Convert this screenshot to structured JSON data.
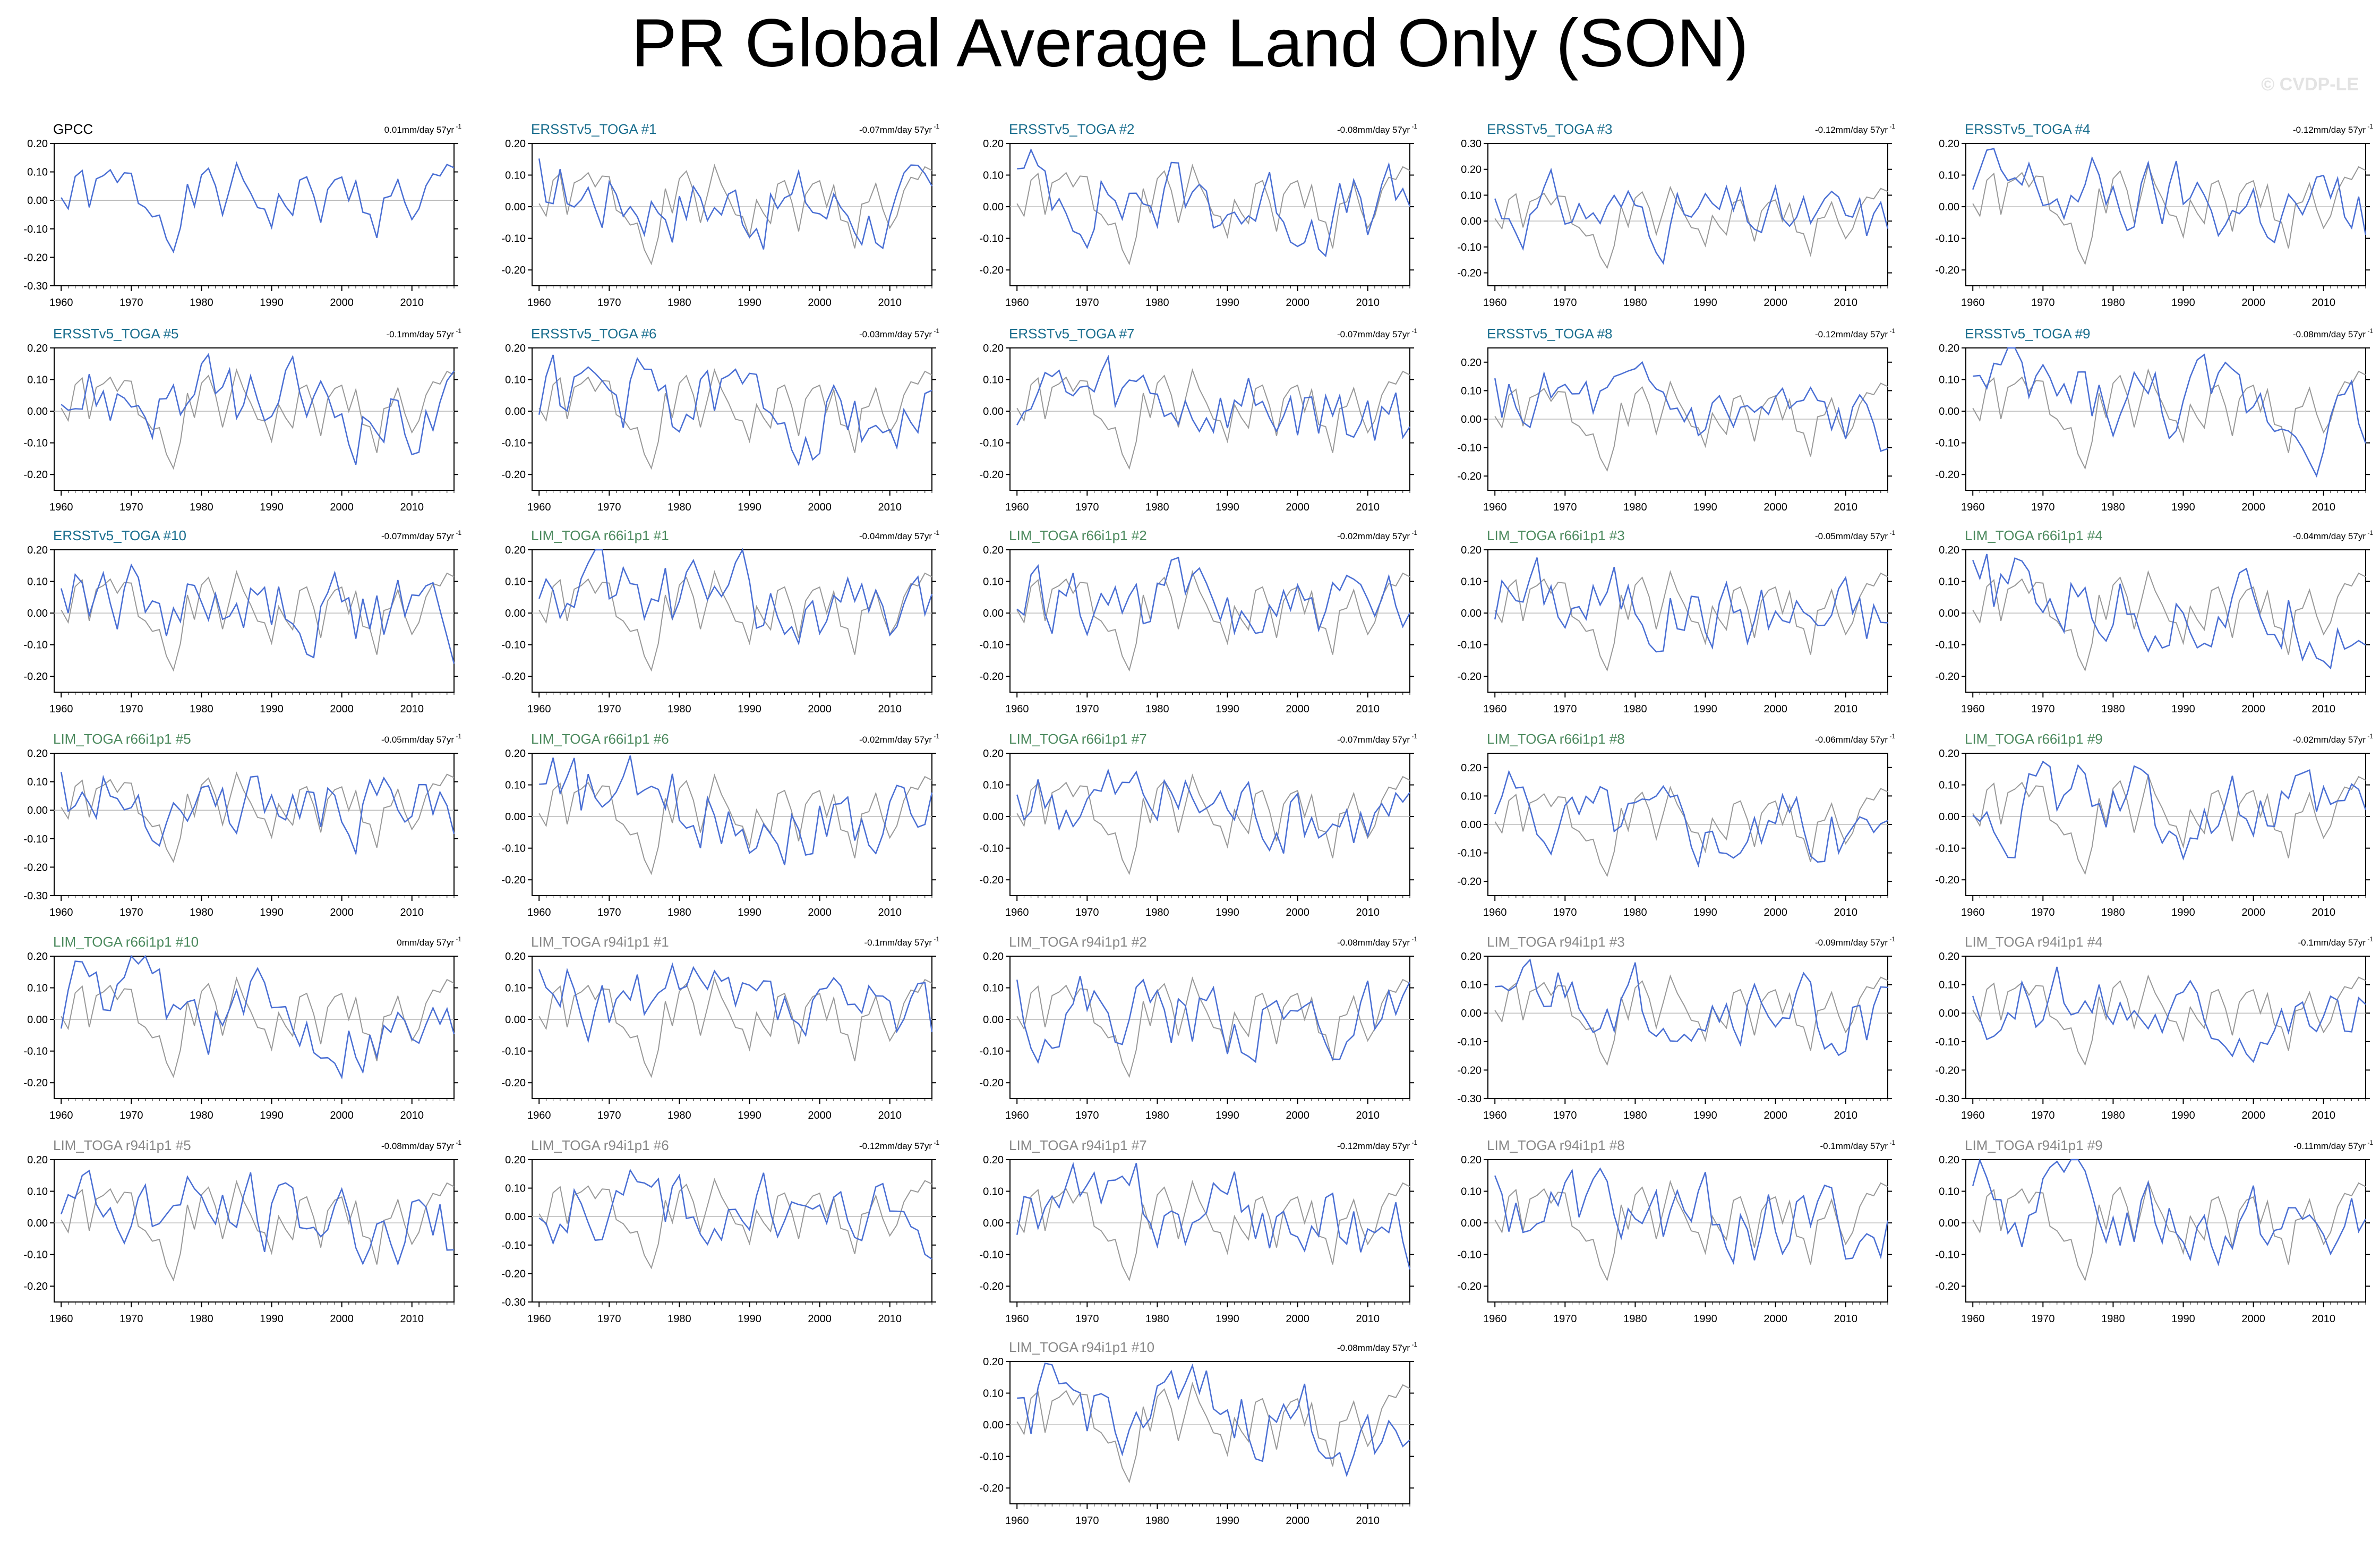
{
  "title": "PR Global Average Land Only (SON)",
  "watermark": "© CVDP-LE",
  "colors": {
    "observed_line": "#999999",
    "member_line": "#4a6fd4",
    "ersst_title": "#1a6e8e",
    "lim_r66_title": "#4c8a5e",
    "lim_r94_title": "#888888",
    "obs_title": "#000000"
  },
  "chart_data": [
    {
      "type": "line",
      "title": "GPCC",
      "group": "obs",
      "trend": "0.01mm/day 57yr",
      "ylim": [
        -0.3,
        0.2
      ],
      "yticks": [
        "0.20",
        "0.10",
        "0.00",
        "-0.10",
        "-0.20",
        "-0.30"
      ],
      "xticks": [
        "1960",
        "1970",
        "1980",
        "1990",
        "2000",
        "2010"
      ],
      "seed": 1
    },
    {
      "type": "line",
      "title": "ERSSTv5_TOGA #1",
      "group": "ersst",
      "trend": "-0.07mm/day 57yr",
      "ylim": [
        -0.25,
        0.2
      ],
      "yticks": [
        "0.20",
        "0.10",
        "0.00",
        "-0.10",
        "-0.20"
      ],
      "xticks": [
        "1960",
        "1970",
        "1980",
        "1990",
        "2000",
        "2010"
      ],
      "seed": 2
    },
    {
      "type": "line",
      "title": "ERSSTv5_TOGA #2",
      "group": "ersst",
      "trend": "-0.08mm/day 57yr",
      "ylim": [
        -0.25,
        0.2
      ],
      "yticks": [
        "0.20",
        "0.10",
        "0.00",
        "-0.10",
        "-0.20"
      ],
      "xticks": [
        "1960",
        "1970",
        "1980",
        "1990",
        "2000",
        "2010"
      ],
      "seed": 3
    },
    {
      "type": "line",
      "title": "ERSSTv5_TOGA #3",
      "group": "ersst",
      "trend": "-0.12mm/day 57yr",
      "ylim": [
        -0.25,
        0.3
      ],
      "yticks": [
        "0.30",
        "0.20",
        "0.10",
        "0.00",
        "-0.10",
        "-0.20"
      ],
      "xticks": [
        "1960",
        "1970",
        "1980",
        "1990",
        "2000",
        "2010"
      ],
      "seed": 4
    },
    {
      "type": "line",
      "title": "ERSSTv5_TOGA #4",
      "group": "ersst",
      "trend": "-0.12mm/day 57yr",
      "ylim": [
        -0.25,
        0.2
      ],
      "yticks": [
        "0.20",
        "0.10",
        "0.00",
        "-0.10",
        "-0.20"
      ],
      "xticks": [
        "1960",
        "1970",
        "1980",
        "1990",
        "2000",
        "2010"
      ],
      "seed": 5
    },
    {
      "type": "line",
      "title": "ERSSTv5_TOGA #5",
      "group": "ersst",
      "trend": "-0.1mm/day 57yr",
      "ylim": [
        -0.25,
        0.2
      ],
      "yticks": [
        "0.20",
        "0.10",
        "0.00",
        "-0.10",
        "-0.20"
      ],
      "xticks": [
        "1960",
        "1970",
        "1980",
        "1990",
        "2000",
        "2010"
      ],
      "seed": 6
    },
    {
      "type": "line",
      "title": "ERSSTv5_TOGA #6",
      "group": "ersst",
      "trend": "-0.03mm/day 57yr",
      "ylim": [
        -0.25,
        0.2
      ],
      "yticks": [
        "0.20",
        "0.10",
        "0.00",
        "-0.10",
        "-0.20"
      ],
      "xticks": [
        "1960",
        "1970",
        "1980",
        "1990",
        "2000",
        "2010"
      ],
      "seed": 7
    },
    {
      "type": "line",
      "title": "ERSSTv5_TOGA #7",
      "group": "ersst",
      "trend": "-0.07mm/day 57yr",
      "ylim": [
        -0.25,
        0.2
      ],
      "yticks": [
        "0.20",
        "0.10",
        "0.00",
        "-0.10",
        "-0.20"
      ],
      "xticks": [
        "1960",
        "1970",
        "1980",
        "1990",
        "2000",
        "2010"
      ],
      "seed": 8
    },
    {
      "type": "line",
      "title": "ERSSTv5_TOGA #8",
      "group": "ersst",
      "trend": "-0.12mm/day 57yr",
      "ylim": [
        -0.25,
        0.25
      ],
      "yticks": [
        "0.20",
        "0.10",
        "0.00",
        "-0.10",
        "-0.20"
      ],
      "xticks": [
        "1960",
        "1970",
        "1980",
        "1990",
        "2000",
        "2010"
      ],
      "seed": 9
    },
    {
      "type": "line",
      "title": "ERSSTv5_TOGA #9",
      "group": "ersst",
      "trend": "-0.08mm/day 57yr",
      "ylim": [
        -0.25,
        0.2
      ],
      "yticks": [
        "0.20",
        "0.10",
        "0.00",
        "-0.10",
        "-0.20"
      ],
      "xticks": [
        "1960",
        "1970",
        "1980",
        "1990",
        "2000",
        "2010"
      ],
      "seed": 10
    },
    {
      "type": "line",
      "title": "ERSSTv5_TOGA #10",
      "group": "ersst",
      "trend": "-0.07mm/day 57yr",
      "ylim": [
        -0.25,
        0.2
      ],
      "yticks": [
        "0.20",
        "0.10",
        "0.00",
        "-0.10",
        "-0.20"
      ],
      "xticks": [
        "1960",
        "1970",
        "1980",
        "1990",
        "2000",
        "2010"
      ],
      "seed": 11
    },
    {
      "type": "line",
      "title": "LIM_TOGA r66i1p1 #1",
      "group": "r66",
      "trend": "-0.04mm/day 57yr",
      "ylim": [
        -0.25,
        0.2
      ],
      "yticks": [
        "0.20",
        "0.10",
        "0.00",
        "-0.10",
        "-0.20"
      ],
      "xticks": [
        "1960",
        "1970",
        "1980",
        "1990",
        "2000",
        "2010"
      ],
      "seed": 12
    },
    {
      "type": "line",
      "title": "LIM_TOGA r66i1p1 #2",
      "group": "r66",
      "trend": "-0.02mm/day 57yr",
      "ylim": [
        -0.25,
        0.2
      ],
      "yticks": [
        "0.20",
        "0.10",
        "0.00",
        "-0.10",
        "-0.20"
      ],
      "xticks": [
        "1960",
        "1970",
        "1980",
        "1990",
        "2000",
        "2010"
      ],
      "seed": 13
    },
    {
      "type": "line",
      "title": "LIM_TOGA r66i1p1 #3",
      "group": "r66",
      "trend": "-0.05mm/day 57yr",
      "ylim": [
        -0.25,
        0.2
      ],
      "yticks": [
        "0.20",
        "0.10",
        "0.00",
        "-0.10",
        "-0.20"
      ],
      "xticks": [
        "1960",
        "1970",
        "1980",
        "1990",
        "2000",
        "2010"
      ],
      "seed": 14
    },
    {
      "type": "line",
      "title": "LIM_TOGA r66i1p1 #4",
      "group": "r66",
      "trend": "-0.04mm/day 57yr",
      "ylim": [
        -0.25,
        0.2
      ],
      "yticks": [
        "0.20",
        "0.10",
        "0.00",
        "-0.10",
        "-0.20"
      ],
      "xticks": [
        "1960",
        "1970",
        "1980",
        "1990",
        "2000",
        "2010"
      ],
      "seed": 15
    },
    {
      "type": "line",
      "title": "LIM_TOGA r66i1p1 #5",
      "group": "r66",
      "trend": "-0.05mm/day 57yr",
      "ylim": [
        -0.3,
        0.2
      ],
      "yticks": [
        "0.20",
        "0.10",
        "0.00",
        "-0.10",
        "-0.20",
        "-0.30"
      ],
      "xticks": [
        "1960",
        "1970",
        "1980",
        "1990",
        "2000",
        "2010"
      ],
      "seed": 16
    },
    {
      "type": "line",
      "title": "LIM_TOGA r66i1p1 #6",
      "group": "r66",
      "trend": "-0.02mm/day 57yr",
      "ylim": [
        -0.25,
        0.2
      ],
      "yticks": [
        "0.20",
        "0.10",
        "0.00",
        "-0.10",
        "-0.20"
      ],
      "xticks": [
        "1960",
        "1970",
        "1980",
        "1990",
        "2000",
        "2010"
      ],
      "seed": 17
    },
    {
      "type": "line",
      "title": "LIM_TOGA r66i1p1 #7",
      "group": "r66",
      "trend": "-0.07mm/day 57yr",
      "ylim": [
        -0.25,
        0.2
      ],
      "yticks": [
        "0.20",
        "0.10",
        "0.00",
        "-0.10",
        "-0.20"
      ],
      "xticks": [
        "1960",
        "1970",
        "1980",
        "1990",
        "2000",
        "2010"
      ],
      "seed": 18
    },
    {
      "type": "line",
      "title": "LIM_TOGA r66i1p1 #8",
      "group": "r66",
      "trend": "-0.06mm/day 57yr",
      "ylim": [
        -0.25,
        0.25
      ],
      "yticks": [
        "0.20",
        "0.10",
        "0.00",
        "-0.10",
        "-0.20"
      ],
      "xticks": [
        "1960",
        "1970",
        "1980",
        "1990",
        "2000",
        "2010"
      ],
      "seed": 19
    },
    {
      "type": "line",
      "title": "LIM_TOGA r66i1p1 #9",
      "group": "r66",
      "trend": "-0.02mm/day 57yr",
      "ylim": [
        -0.25,
        0.2
      ],
      "yticks": [
        "0.20",
        "0.10",
        "0.00",
        "-0.10",
        "-0.20"
      ],
      "xticks": [
        "1960",
        "1970",
        "1980",
        "1990",
        "2000",
        "2010"
      ],
      "seed": 20
    },
    {
      "type": "line",
      "title": "LIM_TOGA r66i1p1 #10",
      "group": "r66",
      "trend": "0mm/day 57yr",
      "ylim": [
        -0.25,
        0.2
      ],
      "yticks": [
        "0.20",
        "0.10",
        "0.00",
        "-0.10",
        "-0.20"
      ],
      "xticks": [
        "1960",
        "1970",
        "1980",
        "1990",
        "2000",
        "2010"
      ],
      "seed": 21
    },
    {
      "type": "line",
      "title": "LIM_TOGA r94i1p1 #1",
      "group": "r94",
      "trend": "-0.1mm/day 57yr",
      "ylim": [
        -0.25,
        0.2
      ],
      "yticks": [
        "0.20",
        "0.10",
        "0.00",
        "-0.10",
        "-0.20"
      ],
      "xticks": [
        "1960",
        "1970",
        "1980",
        "1990",
        "2000",
        "2010"
      ],
      "seed": 22
    },
    {
      "type": "line",
      "title": "LIM_TOGA r94i1p1 #2",
      "group": "r94",
      "trend": "-0.08mm/day 57yr",
      "ylim": [
        -0.25,
        0.2
      ],
      "yticks": [
        "0.20",
        "0.10",
        "0.00",
        "-0.10",
        "-0.20"
      ],
      "xticks": [
        "1960",
        "1970",
        "1980",
        "1990",
        "2000",
        "2010"
      ],
      "seed": 23
    },
    {
      "type": "line",
      "title": "LIM_TOGA r94i1p1 #3",
      "group": "r94",
      "trend": "-0.09mm/day 57yr",
      "ylim": [
        -0.3,
        0.2
      ],
      "yticks": [
        "0.20",
        "0.10",
        "0.00",
        "-0.10",
        "-0.20",
        "-0.30"
      ],
      "xticks": [
        "1960",
        "1970",
        "1980",
        "1990",
        "2000",
        "2010"
      ],
      "seed": 24
    },
    {
      "type": "line",
      "title": "LIM_TOGA r94i1p1 #4",
      "group": "r94",
      "trend": "-0.1mm/day 57yr",
      "ylim": [
        -0.3,
        0.2
      ],
      "yticks": [
        "0.20",
        "0.10",
        "0.00",
        "-0.10",
        "-0.20",
        "-0.30"
      ],
      "xticks": [
        "1960",
        "1970",
        "1980",
        "1990",
        "2000",
        "2010"
      ],
      "seed": 25
    },
    {
      "type": "line",
      "title": "LIM_TOGA r94i1p1 #5",
      "group": "r94",
      "trend": "-0.08mm/day 57yr",
      "ylim": [
        -0.25,
        0.2
      ],
      "yticks": [
        "0.20",
        "0.10",
        "0.00",
        "-0.10",
        "-0.20"
      ],
      "xticks": [
        "1960",
        "1970",
        "1980",
        "1990",
        "2000",
        "2010"
      ],
      "seed": 26
    },
    {
      "type": "line",
      "title": "LIM_TOGA r94i1p1 #6",
      "group": "r94",
      "trend": "-0.12mm/day 57yr",
      "ylim": [
        -0.3,
        0.2
      ],
      "yticks": [
        "0.20",
        "0.10",
        "0.00",
        "-0.10",
        "-0.20",
        "-0.30"
      ],
      "xticks": [
        "1960",
        "1970",
        "1980",
        "1990",
        "2000",
        "2010"
      ],
      "seed": 27
    },
    {
      "type": "line",
      "title": "LIM_TOGA r94i1p1 #7",
      "group": "r94",
      "trend": "-0.12mm/day 57yr",
      "ylim": [
        -0.25,
        0.2
      ],
      "yticks": [
        "0.20",
        "0.10",
        "0.00",
        "-0.10",
        "-0.20"
      ],
      "xticks": [
        "1960",
        "1970",
        "1980",
        "1990",
        "2000",
        "2010"
      ],
      "seed": 28
    },
    {
      "type": "line",
      "title": "LIM_TOGA r94i1p1 #8",
      "group": "r94",
      "trend": "-0.1mm/day 57yr",
      "ylim": [
        -0.25,
        0.2
      ],
      "yticks": [
        "0.20",
        "0.10",
        "0.00",
        "-0.10",
        "-0.20"
      ],
      "xticks": [
        "1960",
        "1970",
        "1980",
        "1990",
        "2000",
        "2010"
      ],
      "seed": 29
    },
    {
      "type": "line",
      "title": "LIM_TOGA r94i1p1 #9",
      "group": "r94",
      "trend": "-0.11mm/day 57yr",
      "ylim": [
        -0.25,
        0.2
      ],
      "yticks": [
        "0.20",
        "0.10",
        "0.00",
        "-0.10",
        "-0.20"
      ],
      "xticks": [
        "1960",
        "1970",
        "1980",
        "1990",
        "2000",
        "2010"
      ],
      "seed": 30
    },
    {
      "type": "line",
      "title": "LIM_TOGA r94i1p1 #10",
      "group": "r94",
      "trend": "-0.08mm/day 57yr",
      "ylim": [
        -0.25,
        0.2
      ],
      "yticks": [
        "0.20",
        "0.10",
        "0.00",
        "-0.10",
        "-0.20"
      ],
      "xticks": [
        "1960",
        "1970",
        "1980",
        "1990",
        "2000",
        "2010"
      ],
      "seed": 31
    }
  ]
}
